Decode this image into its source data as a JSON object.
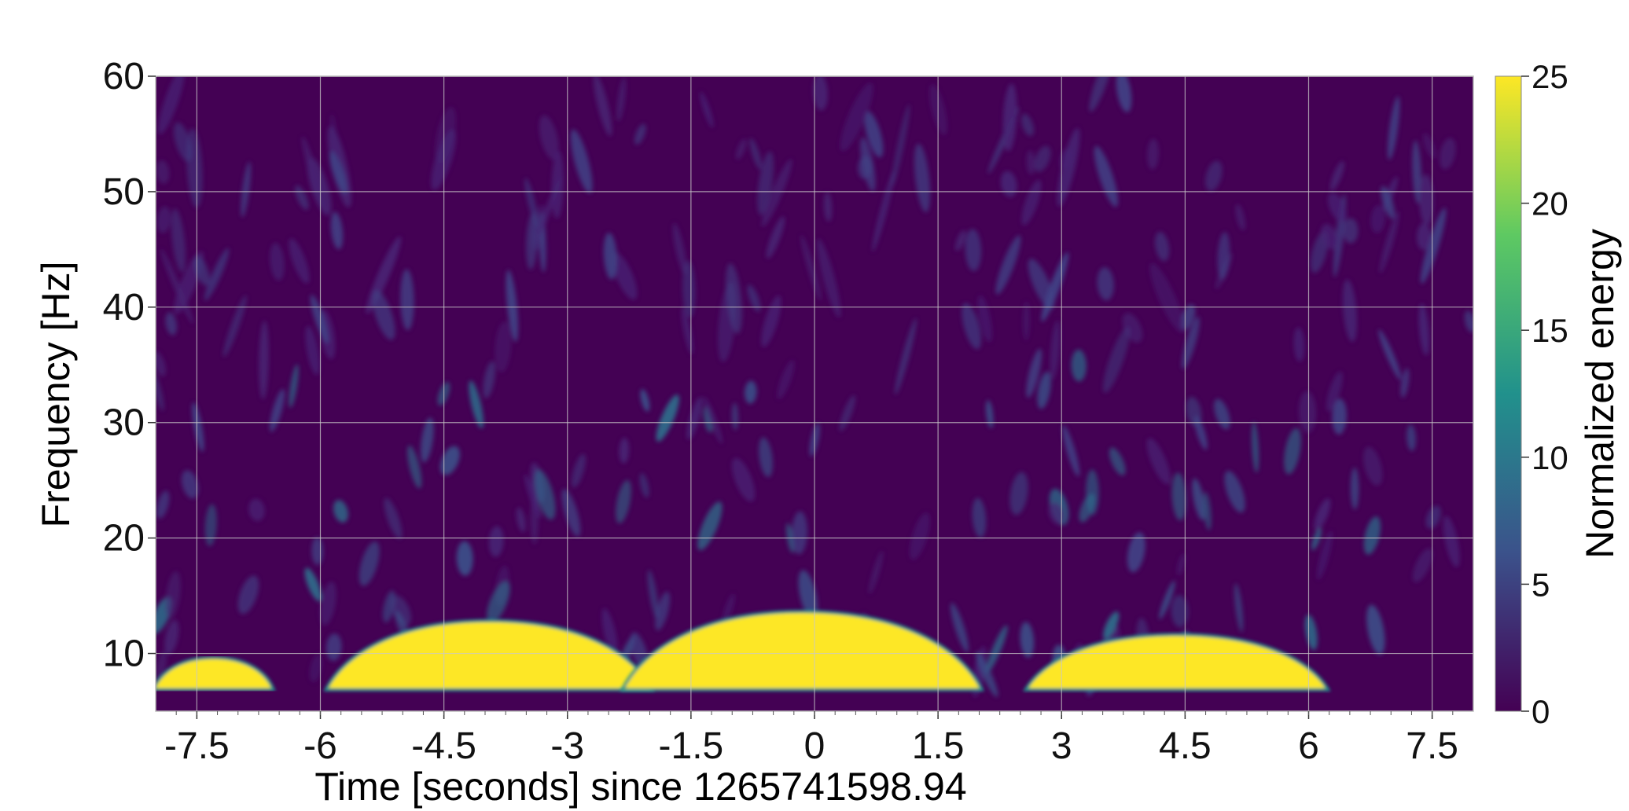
{
  "chart_data": {
    "type": "heatmap",
    "title": "",
    "xlabel": "Time [seconds] since 1265741598.94",
    "ylabel": "Frequency [Hz]",
    "colorbar_label": "Normalized energy",
    "xlim": [
      -8,
      8
    ],
    "ylim": [
      5,
      60
    ],
    "clim": [
      0,
      25
    ],
    "colormap": [
      "#440154",
      "#3b528b",
      "#21918c",
      "#5ec962",
      "#fde725"
    ],
    "grid": true,
    "x_ticks": [
      "-7.5",
      "-6",
      "-4.5",
      "-3",
      "-1.5",
      "0",
      "1.5",
      "3",
      "4.5",
      "6",
      "7.5"
    ],
    "x_tick_values": [
      -7.5,
      -6,
      -4.5,
      -3,
      -1.5,
      0,
      1.5,
      3,
      4.5,
      6,
      7.5
    ],
    "y_ticks": [
      "10",
      "20",
      "30",
      "40",
      "50",
      "60"
    ],
    "y_tick_values": [
      10,
      20,
      30,
      40,
      50,
      60
    ],
    "colorbar_ticks": [
      "0",
      "5",
      "10",
      "15",
      "20",
      "25"
    ],
    "colorbar_tick_values": [
      0,
      5,
      10,
      15,
      20,
      25
    ],
    "high_energy_regions": [
      {
        "t_start": -8.0,
        "t_end": -6.6,
        "f_low": 7.0,
        "f_high": 9.5,
        "energy": 25
      },
      {
        "t_start": -5.9,
        "t_end": -2.0,
        "f_low": 7.0,
        "f_high": 12.7,
        "energy": 25
      },
      {
        "t_start": -2.3,
        "t_end": 2.0,
        "f_low": 7.0,
        "f_high": 13.5,
        "energy": 25
      },
      {
        "t_start": 2.6,
        "t_end": 6.2,
        "f_low": 7.0,
        "f_high": 11.5,
        "energy": 25
      }
    ]
  }
}
